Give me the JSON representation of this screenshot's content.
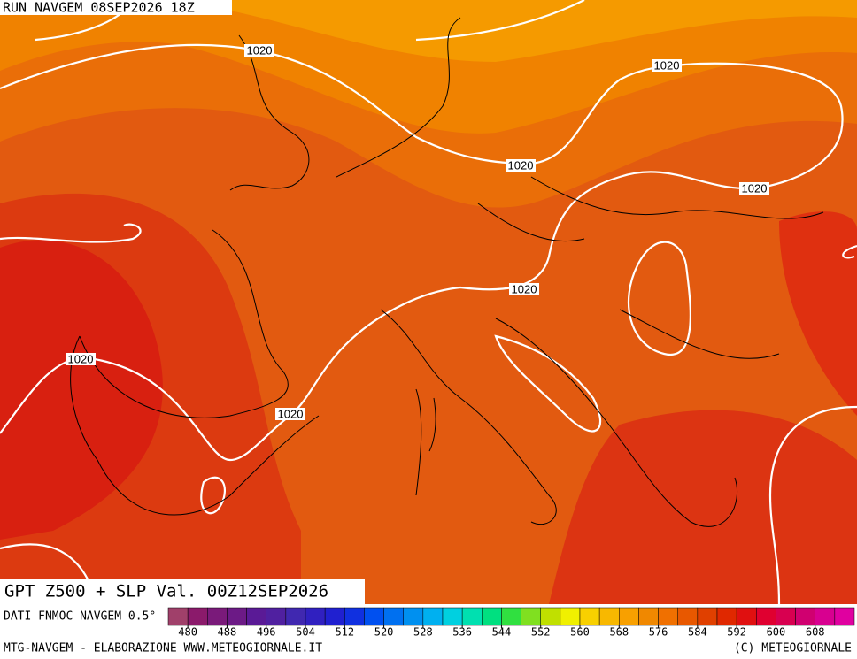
{
  "header": {
    "title": "RUN NAVGEM 08SEP2026 18Z"
  },
  "map": {
    "isobar_labels": [
      "1020",
      "1020",
      "1020",
      "1020",
      "1020",
      "1020",
      "1020"
    ],
    "caption": "GPT Z500 + SLP Val. 00Z12SEP2026"
  },
  "legend": {
    "source": "DATI FNMOC NAVGEM 0.5°",
    "lim": [
      476,
      616
    ],
    "ticks": [
      480,
      488,
      496,
      504,
      512,
      520,
      528,
      536,
      544,
      552,
      560,
      568,
      576,
      584,
      592,
      600,
      608
    ],
    "colors": [
      "#a0406a",
      "#8b1a6b",
      "#7a1a7a",
      "#6c1a86",
      "#5a1a96",
      "#5020a0",
      "#4028b0",
      "#3020c0",
      "#2020d0",
      "#1030e0",
      "#0050f0",
      "#0070f0",
      "#0090f0",
      "#00b0f0",
      "#00d0e0",
      "#00e0b0",
      "#00e080",
      "#30e040",
      "#80e020",
      "#c0e000",
      "#f0f000",
      "#f8d000",
      "#f8b800",
      "#f8a000",
      "#f08800",
      "#f07000",
      "#e85800",
      "#e04000",
      "#e02800",
      "#e01010",
      "#e00030",
      "#d80050",
      "#d00070",
      "#d80090",
      "#e000a0"
    ]
  },
  "footer": {
    "left": "MTG-NAVGEM - ELABORAZIONE WWW.METEOGIORNALE.IT",
    "right": "(C) METEOGIORNALE"
  }
}
